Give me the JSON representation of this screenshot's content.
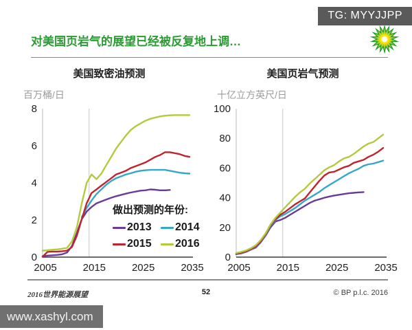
{
  "header": {
    "tg_badge": "TG: MYYJJPP",
    "title": "对美国页岩气的展望已经被反复地上调…",
    "logo": "bp-helios-logo"
  },
  "colors": {
    "title_green": "#2b9b33",
    "axis": "#3a3a3a",
    "gridline": "#c6c6c6",
    "badge_bg": "#5a5a5a"
  },
  "legend": {
    "title": "做出预测的年份:",
    "items": [
      {
        "label": "2013",
        "color": "#6B3A96"
      },
      {
        "label": "2014",
        "color": "#35A7C9"
      },
      {
        "label": "2015",
        "color": "#BE232E"
      },
      {
        "label": "2016",
        "color": "#B4C93C"
      }
    ]
  },
  "chart_data": [
    {
      "type": "line",
      "title": "美国致密油预测",
      "unit_label": "百万桶/日",
      "xlabel": "",
      "ylabel": "百万桶/日",
      "xlim": [
        2005,
        2035
      ],
      "ylim": [
        0,
        8
      ],
      "xticks": [
        2005,
        2015,
        2025,
        2035
      ],
      "yticks": [
        0,
        2,
        4,
        6,
        8
      ],
      "refline_x": 2014.5,
      "grid": false,
      "legend_position": "inside-lower-right",
      "series": [
        {
          "name": "2013",
          "color": "#6B3A96",
          "x_start": 2005,
          "values": [
            0.05,
            0.08,
            0.1,
            0.12,
            0.15,
            0.25,
            0.6,
            1.3,
            2.05,
            2.45,
            2.7,
            2.9,
            3.0,
            3.1,
            3.2,
            3.28,
            3.35,
            3.42,
            3.48,
            3.53,
            3.58,
            3.6,
            3.65,
            3.63,
            3.6,
            3.6,
            3.62
          ]
        },
        {
          "name": "2014",
          "color": "#35A7C9",
          "x_start": 2013,
          "values": [
            2.15,
            2.65,
            3.05,
            3.4,
            3.65,
            3.9,
            4.1,
            4.25,
            4.35,
            4.45,
            4.52,
            4.6,
            4.65,
            4.68,
            4.7,
            4.7,
            4.7,
            4.7,
            4.65,
            4.6,
            4.55,
            4.52,
            4.5
          ]
        },
        {
          "name": "2015",
          "color": "#BE232E",
          "x_start": 2005,
          "values": [
            0.02,
            0.28,
            0.3,
            0.3,
            0.32,
            0.35,
            0.55,
            1.15,
            2.05,
            2.9,
            3.45,
            3.65,
            3.85,
            4.05,
            4.25,
            4.45,
            4.55,
            4.65,
            4.8,
            4.9,
            5.0,
            5.1,
            5.25,
            5.4,
            5.5,
            5.65,
            5.65,
            5.6,
            5.55,
            5.45,
            5.4
          ]
        },
        {
          "name": "2016",
          "color": "#B4C93C",
          "x_start": 2005,
          "values": [
            0.35,
            0.37,
            0.4,
            0.42,
            0.45,
            0.5,
            0.85,
            1.6,
            2.9,
            4.0,
            4.45,
            4.2,
            4.5,
            4.95,
            5.4,
            5.85,
            6.2,
            6.55,
            6.85,
            7.05,
            7.2,
            7.35,
            7.45,
            7.52,
            7.58,
            7.62,
            7.64,
            7.65,
            7.65,
            7.65,
            7.65
          ]
        }
      ]
    },
    {
      "type": "line",
      "title": "美国页岩气预测",
      "unit_label": "十亿立方英尺/日",
      "xlabel": "",
      "ylabel": "十亿立方英尺/日",
      "xlim": [
        2005,
        2035
      ],
      "ylim": [
        0,
        100
      ],
      "xticks": [
        2005,
        2015,
        2025,
        2035
      ],
      "yticks": [
        0,
        20,
        40,
        60,
        80,
        100
      ],
      "refline_x": 2014.5,
      "grid": false,
      "legend_position": "none",
      "series": [
        {
          "name": "2013",
          "color": "#6B3A96",
          "x_start": 2005,
          "values": [
            2.0,
            2.5,
            3.5,
            5.0,
            6.5,
            10,
            14.5,
            20,
            24,
            25,
            26.5,
            28.5,
            30.5,
            32.5,
            34.5,
            36.5,
            38,
            39,
            40,
            40.8,
            41.5,
            42,
            42.5,
            43,
            43.3,
            43.6,
            43.8
          ]
        },
        {
          "name": "2014",
          "color": "#35A7C9",
          "x_start": 2005,
          "values": [
            2.2,
            2.8,
            3.8,
            5.2,
            7.0,
            10.5,
            15,
            21,
            25,
            27.5,
            29,
            31,
            33,
            35.5,
            38,
            40,
            42,
            44,
            46.5,
            48.5,
            50.5,
            52.5,
            54.5,
            56.5,
            58,
            59.5,
            61.5,
            62.5,
            63,
            64,
            65
          ]
        },
        {
          "name": "2015",
          "color": "#BE232E",
          "x_start": 2005,
          "values": [
            2.3,
            3.0,
            4.0,
            5.5,
            7.2,
            10.8,
            15.5,
            21.5,
            25.5,
            28.5,
            30.5,
            33,
            35.5,
            37.5,
            39.5,
            43.5,
            47.5,
            51.5,
            55,
            57,
            57.5,
            59,
            60.5,
            61.5,
            63.5,
            64.5,
            65.5,
            67.5,
            69,
            71,
            73.5
          ]
        },
        {
          "name": "2016",
          "color": "#B4C93C",
          "x_start": 2005,
          "values": [
            2.8,
            3.5,
            4.5,
            6.0,
            8.0,
            11.5,
            16,
            22,
            26.5,
            30,
            33.5,
            37,
            40.5,
            43.5,
            46,
            49.5,
            52.5,
            55.5,
            58.5,
            60.5,
            62,
            64.5,
            66.5,
            67.5,
            69.5,
            72,
            74.5,
            76.5,
            77.5,
            80,
            82.5
          ]
        }
      ]
    }
  ],
  "footer": {
    "title": "2016世界能源展望",
    "page": "52",
    "copyright": "© BP p.l.c. 2016",
    "watermark": "www.xashyl.com"
  }
}
